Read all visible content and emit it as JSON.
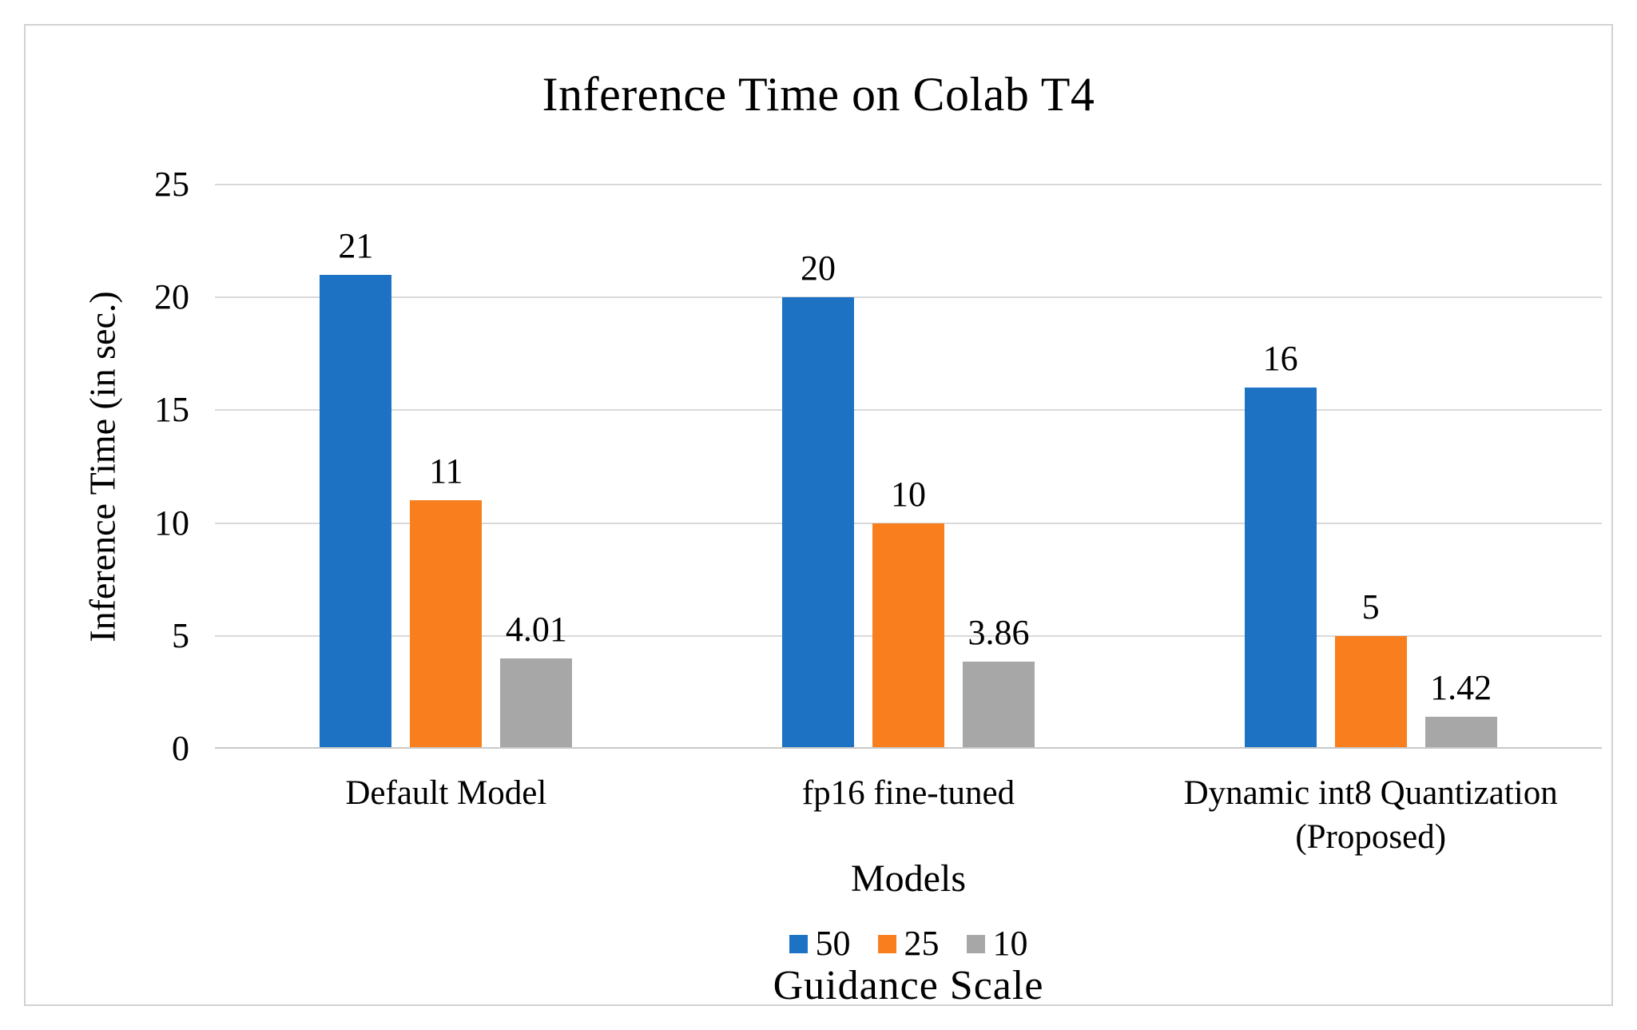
{
  "chart_data": {
    "type": "bar",
    "title": "Inference Time on Colab T4",
    "xlabel": "Models",
    "ylabel": "Inference Time (in sec.)",
    "legend_title": "Guidance Scale",
    "legend_position": "bottom",
    "grid": true,
    "ylim": [
      0,
      25
    ],
    "yticks": [
      0,
      5,
      10,
      15,
      20,
      25
    ],
    "categories": [
      "Default Model",
      "fp16 fine-tuned",
      "Dynamic int8 Quantization (Proposed)"
    ],
    "series": [
      {
        "name": "50",
        "color": "#1d72c4",
        "values": [
          21,
          20,
          16
        ]
      },
      {
        "name": "25",
        "color": "#f97e1e",
        "values": [
          11,
          10,
          5
        ]
      },
      {
        "name": "10",
        "color": "#a7a7a7",
        "values": [
          4.01,
          3.86,
          1.42
        ]
      }
    ],
    "colors": {
      "gridline": "#d9d9d9",
      "axis_line": "#c8c8c8",
      "frame_border": "#d2d2d2",
      "text": "#000000"
    }
  }
}
